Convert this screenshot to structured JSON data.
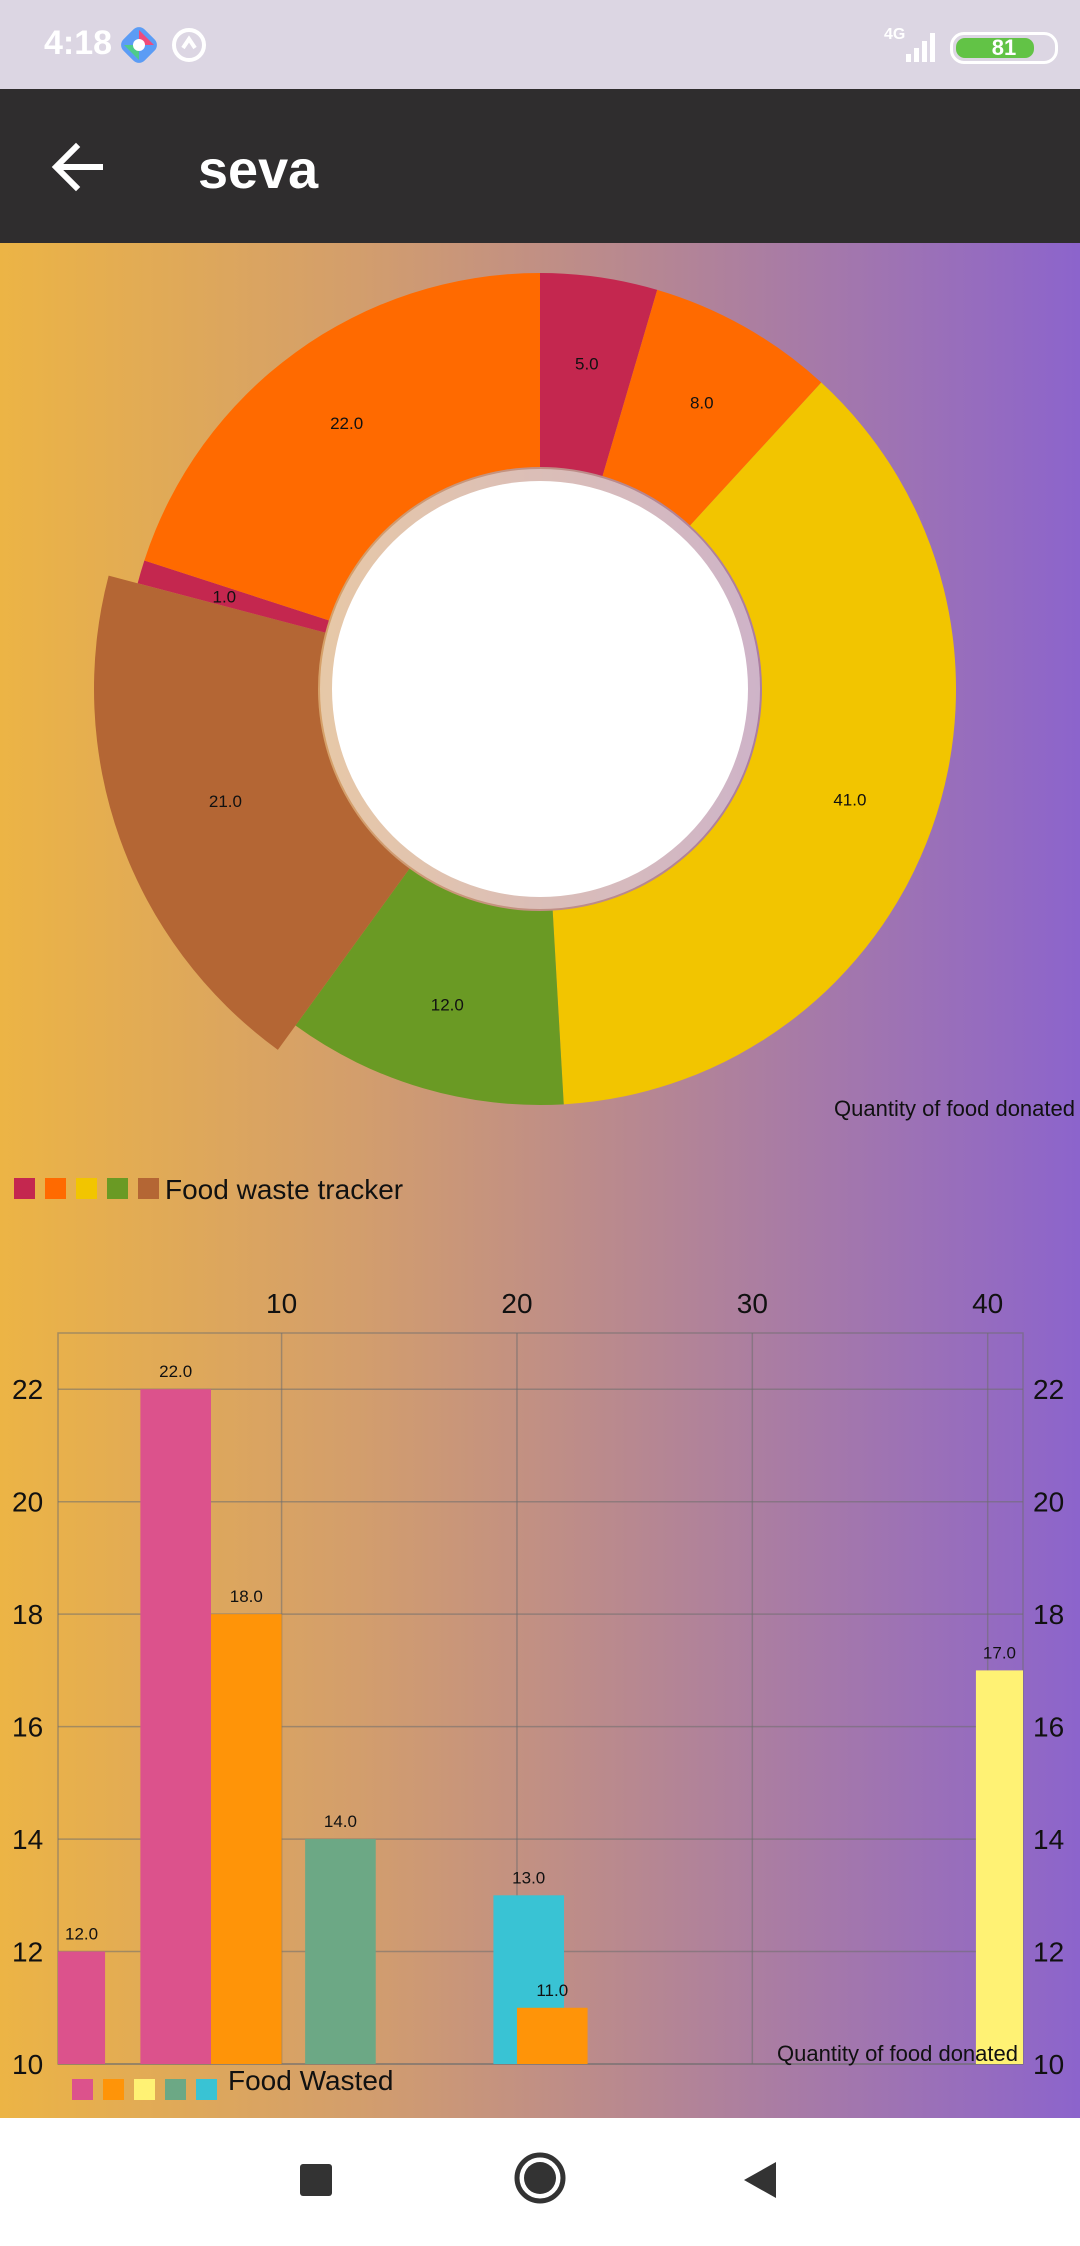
{
  "status_bar": {
    "time": "4:18",
    "network": "4G",
    "battery": 81,
    "icons": [
      "app-notification-icon",
      "sync-icon",
      "signal-icon",
      "battery-icon"
    ]
  },
  "app_bar": {
    "title": "seva",
    "back_icon": "arrow-left-icon"
  },
  "chart_data": [
    {
      "type": "pie",
      "subtype": "donut",
      "description_label": "Quantity of food donated",
      "legend_label": "Food waste tracker",
      "legend_colors": [
        "#c4274f",
        "#ff6a00",
        "#f2c500",
        "#6a9a24",
        "#b46634"
      ],
      "slices": [
        {
          "value": 5.0,
          "label": "5.0",
          "color": "#c4274f"
        },
        {
          "value": 8.0,
          "label": "8.0",
          "color": "#ff6a00"
        },
        {
          "value": 41.0,
          "label": "41.0",
          "color": "#f2c500"
        },
        {
          "value": 12.0,
          "label": "12.0",
          "color": "#6a9a24"
        },
        {
          "value": 21.0,
          "label": "21.0",
          "color": "#b46634",
          "highlighted": true
        },
        {
          "value": 1.0,
          "label": "1.0",
          "color": "#c4274f"
        },
        {
          "value": 22.0,
          "label": "22.0",
          "color": "#ff6a00"
        }
      ]
    },
    {
      "type": "bar",
      "description_label": "Quantity of food donated",
      "legend_label": "Food Wasted",
      "legend_colors": [
        "#dc528c",
        "#ff9408",
        "#fff274",
        "#6ca885",
        "#39c3d4"
      ],
      "x_ticks": [
        "10",
        "20",
        "30",
        "40"
      ],
      "y_ticks": [
        "10",
        "12",
        "14",
        "16",
        "18",
        "20",
        "22"
      ],
      "xlim": [
        0.5,
        41.5
      ],
      "ylim": [
        10,
        23
      ],
      "grid": true,
      "bars": [
        {
          "x": 1.5,
          "width": 2,
          "value": 12.0,
          "label": "12.0",
          "color": "#dc528c"
        },
        {
          "x": 5.5,
          "width": 3,
          "value": 22.0,
          "label": "22.0",
          "color": "#dc528c"
        },
        {
          "x": 8.5,
          "width": 3,
          "value": 18.0,
          "label": "18.0",
          "color": "#ff9408"
        },
        {
          "x": 12.5,
          "width": 3,
          "value": 14.0,
          "label": "14.0",
          "color": "#6ca885"
        },
        {
          "x": 20.5,
          "width": 3,
          "value": 13.0,
          "label": "13.0",
          "color": "#39c3d4"
        },
        {
          "x": 21.5,
          "width": 3,
          "value": 11.0,
          "label": "11.0",
          "color": "#ff9408"
        },
        {
          "x": 40.5,
          "width": 2,
          "value": 17.0,
          "label": "17.0",
          "color": "#fff274"
        }
      ]
    }
  ],
  "nav_bar": {
    "icons": [
      "recents-square-icon",
      "home-circle-icon",
      "back-triangle-icon"
    ]
  }
}
